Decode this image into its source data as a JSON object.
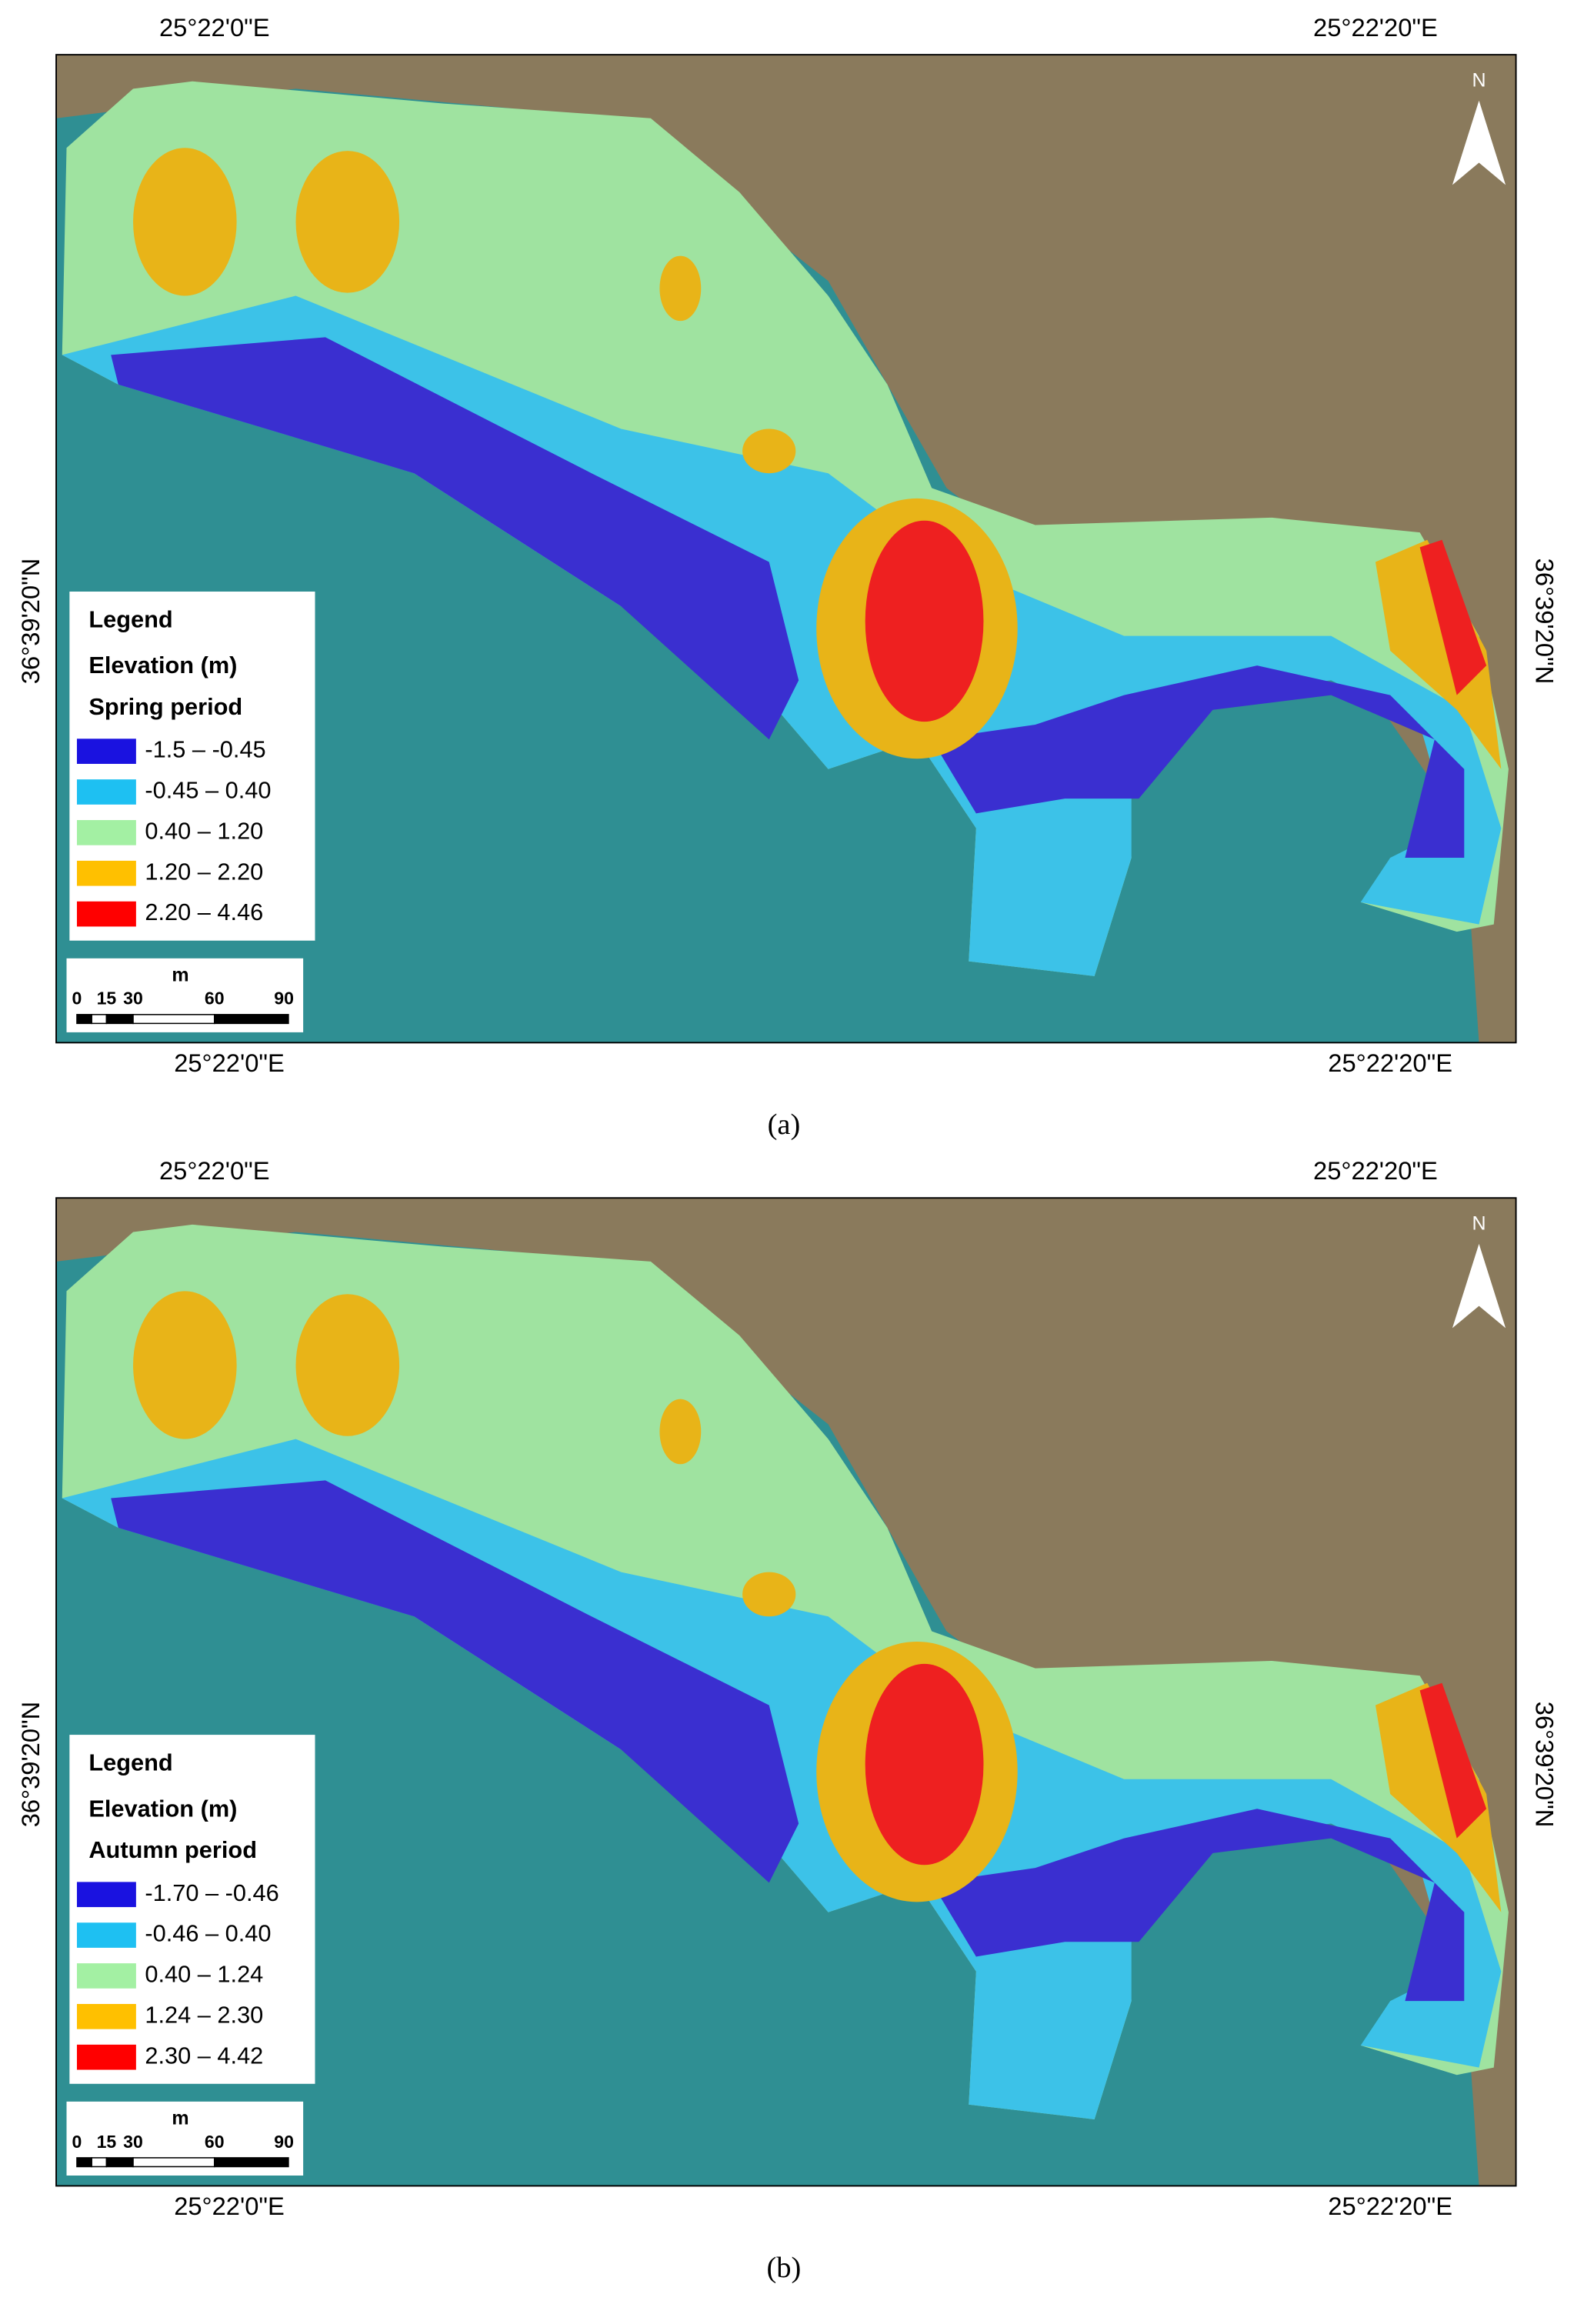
{
  "panels": [
    {
      "caption": "(a)",
      "lon_top": [
        "25°22'0\"E",
        "25°22'20\"E"
      ],
      "lon_bottom": [
        "25°22'0\"E",
        "25°22'20\"E"
      ],
      "lat": [
        "36°39'20\"N",
        "36°39'20\"N"
      ],
      "north": "N",
      "legend": {
        "title": "Legend",
        "field": "Elevation (m)",
        "period": "Spring period",
        "classes": [
          {
            "label": "-1.5 – -0.45",
            "color": "#1a12e0"
          },
          {
            "label": "-0.45 – 0.40",
            "color": "#1ec0f2"
          },
          {
            "label": "0.40 – 1.20",
            "color": "#a3f0a3"
          },
          {
            "label": "1.20 – 2.20",
            "color": "#ffc000"
          },
          {
            "label": "2.20 – 4.46",
            "color": "#ff0000"
          }
        ]
      },
      "scale": {
        "unit": "m",
        "ticks": [
          "0",
          "15",
          "30",
          "60",
          "90"
        ]
      }
    },
    {
      "caption": "(b)",
      "lon_top": [
        "25°22'0\"E",
        "25°22'20\"E"
      ],
      "lon_bottom": [
        "25°22'0\"E",
        "25°22'20\"E"
      ],
      "lat": [
        "36°39'20\"N",
        "36°39'20\"N"
      ],
      "north": "N",
      "legend": {
        "title": "Legend",
        "field": "Elevation (m)",
        "period": "Autumn period",
        "classes": [
          {
            "label": "-1.70 – -0.46",
            "color": "#1a12e0"
          },
          {
            "label": "-0.46 – 0.40",
            "color": "#1ec0f2"
          },
          {
            "label": "0.40 – 1.24",
            "color": "#a3f0a3"
          },
          {
            "label": "1.24 – 2.30",
            "color": "#ffc000"
          },
          {
            "label": "2.30 – 4.42",
            "color": "#ff0000"
          }
        ]
      },
      "scale": {
        "unit": "m",
        "ticks": [
          "0",
          "15",
          "30",
          "60",
          "90"
        ]
      }
    }
  ]
}
